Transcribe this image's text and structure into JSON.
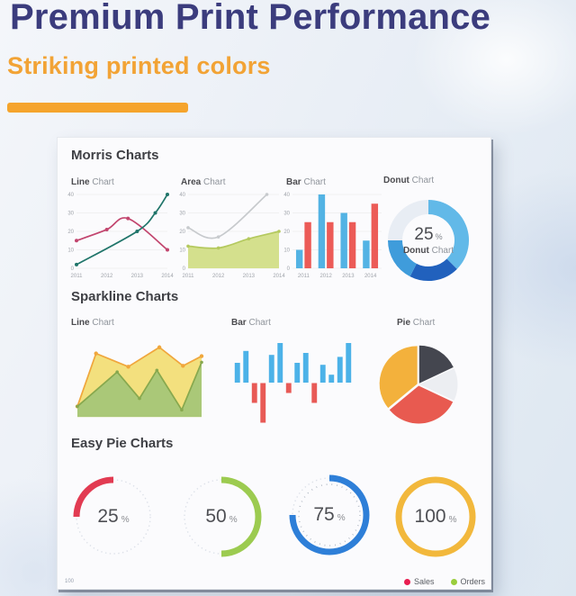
{
  "header": {
    "title": "Premium Print Performance",
    "subtitle": "Striking printed colors",
    "title_color": "#3b3c7d",
    "accent_color": "#f5a42c"
  },
  "sheet": {
    "page_number": "100",
    "sections": {
      "morris": "Morris Charts",
      "sparkline": "Sparkline Charts",
      "easypie": "Easy Pie Charts"
    },
    "legend": [
      {
        "label": "Sales",
        "color": "#e91e50"
      },
      {
        "label": "Orders",
        "color": "#9acd3c"
      }
    ]
  },
  "chart_labels": {
    "morris_line": {
      "bold": "Line",
      "rest": " Chart"
    },
    "morris_area": {
      "bold": "Area",
      "rest": " Chart"
    },
    "morris_bar": {
      "bold": "Bar",
      "rest": " Chart"
    },
    "morris_donut": {
      "bold": "Donut",
      "rest": " Chart"
    },
    "spark_line": {
      "bold": "Line",
      "rest": " Chart"
    },
    "spark_bar": {
      "bold": "Bar",
      "rest": " Chart"
    },
    "spark_pie": {
      "bold": "Pie",
      "rest": " Chart"
    }
  },
  "chart_data": [
    {
      "id": "morris-line",
      "type": "line",
      "title": "Line Chart",
      "x_ticks": [
        "2011",
        "2012",
        "2013",
        "2014"
      ],
      "y_ticks": [
        0,
        10,
        20,
        30,
        40
      ],
      "xlim": [
        2011,
        2014
      ],
      "ylim": [
        0,
        40
      ],
      "grid": true,
      "series": [
        {
          "name": "red-series",
          "color": "#c2456e",
          "x": [
            2011,
            2012,
            2012.7,
            2014
          ],
          "y": [
            15,
            21,
            27,
            10
          ],
          "points": true
        },
        {
          "name": "teal-series",
          "color": "#20756a",
          "x": [
            2011,
            2013,
            2013.6,
            2014
          ],
          "y": [
            2,
            20,
            30,
            40
          ],
          "points": true
        }
      ]
    },
    {
      "id": "morris-area",
      "type": "area",
      "title": "Area Chart",
      "x_ticks": [
        "2011",
        "2012",
        "2013",
        "2014"
      ],
      "y_ticks": [
        0,
        10,
        20,
        30,
        40
      ],
      "xlim": [
        2011,
        2014
      ],
      "ylim": [
        0,
        40
      ],
      "grid": true,
      "series": [
        {
          "name": "gray-line",
          "color": "#c7cacd",
          "x": [
            2011,
            2012,
            2013.6
          ],
          "y": [
            22,
            17,
            40
          ],
          "points": true,
          "pr": 1.8
        },
        {
          "name": "green-area",
          "color": "#b4c95e",
          "fill": "#d4e08d",
          "x": [
            2011,
            2012,
            2013,
            2014
          ],
          "y": [
            12,
            11,
            16,
            20
          ],
          "points": true,
          "pr": 1.8
        }
      ]
    },
    {
      "id": "morris-bar",
      "type": "bar",
      "title": "Bar Chart",
      "categories": [
        "2011",
        "2012",
        "2013",
        "2014"
      ],
      "y_ticks": [
        0,
        10,
        20,
        30,
        40
      ],
      "ylim": [
        0,
        40
      ],
      "grid": true,
      "series": [
        {
          "name": "series-a",
          "color": "#53b3e4",
          "values": [
            10,
            40,
            30,
            15
          ]
        },
        {
          "name": "series-b",
          "color": "#ec5b57",
          "values": [
            25,
            25,
            25,
            35
          ]
        }
      ]
    },
    {
      "id": "morris-donut",
      "type": "donut",
      "title": "Donut Chart",
      "center_value": "25",
      "center_unit": "%",
      "segments": [
        {
          "value": 37.5,
          "color": "#62b9e8"
        },
        {
          "value": 20,
          "color": "#2161bd"
        },
        {
          "value": 17.5,
          "color": "#3f9cdb"
        },
        {
          "value": 25,
          "color": "#e8edf4"
        }
      ]
    },
    {
      "id": "spark-line",
      "type": "area",
      "title": "Line Chart",
      "xlim": [
        0,
        10
      ],
      "ylim": [
        0,
        10
      ],
      "baseline": 0.9,
      "grid": false,
      "series": [
        {
          "name": "yellow-area",
          "color": "#f0a63c",
          "fill": "#f3e07e",
          "smooth": false,
          "points": true,
          "pr": 2.2,
          "x": [
            0,
            1.5,
            4.1,
            6.6,
            8.5,
            10
          ],
          "y": [
            2.1,
            8.1,
            6.6,
            8.8,
            6.7,
            7.8
          ]
        },
        {
          "name": "green-area",
          "color": "#87a84e",
          "fill": "#aac878",
          "smooth": false,
          "points": true,
          "pr": 1.8,
          "x": [
            0,
            3.2,
            5.0,
            6.4,
            8.4,
            10
          ],
          "y": [
            2.1,
            6.0,
            3.0,
            6.2,
            1.7,
            7.1
          ]
        }
      ]
    },
    {
      "id": "spark-bar",
      "type": "sparkbar",
      "title": "Bar Chart",
      "values": [
        5,
        8,
        -5,
        -10,
        7,
        10,
        -2.5,
        5,
        7.5,
        -5,
        4.5,
        2,
        6.5,
        10
      ],
      "positive_color": "#4cb2e8",
      "negative_color": "#e85a56"
    },
    {
      "id": "spark-pie",
      "type": "pie",
      "title": "Pie Chart",
      "start_angle": 0,
      "slices": [
        {
          "name": "dark",
          "value": 18,
          "color": "#44464f"
        },
        {
          "name": "light",
          "value": 14,
          "color": "#eceef2"
        },
        {
          "name": "red",
          "value": 32,
          "color": "#e85a50"
        },
        {
          "name": "orange",
          "value": 36,
          "color": "#f3b13c"
        }
      ]
    },
    {
      "id": "easy-pies",
      "type": "gauge-set",
      "title": "Easy Pie Charts",
      "track_color": "#dde1e9",
      "gauges": [
        {
          "value": 25,
          "unit": "%",
          "color": "#e23b52",
          "direction": "ccw"
        },
        {
          "value": 50,
          "unit": "%",
          "color": "#9ccb50",
          "direction": "cw"
        },
        {
          "value": 75,
          "unit": "%",
          "color": "#2e7fd8",
          "direction": "cw",
          "inner_dots": true
        },
        {
          "value": 100,
          "unit": "%",
          "color": "#f2b83c",
          "direction": "cw"
        }
      ]
    }
  ]
}
